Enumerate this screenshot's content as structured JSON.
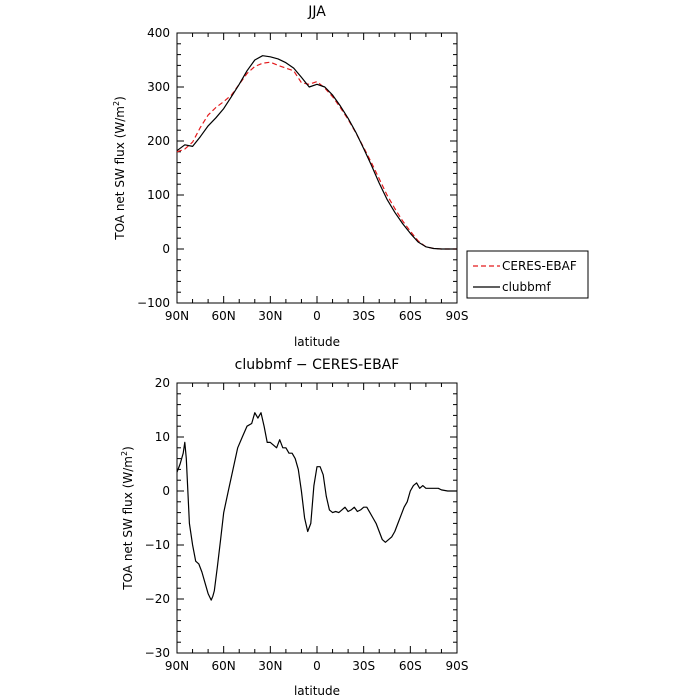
{
  "colors": {
    "ceres": "#e41a1c",
    "model": "#000000",
    "axis": "#000000"
  },
  "chart_data": [
    {
      "type": "line",
      "title": "JJA",
      "xlabel": "latitude",
      "ylabel": "TOA net SW flux (W/m",
      "ylabel_sup": "2",
      "ylabel_close": ")",
      "xlim": [
        90,
        -90
      ],
      "ylim": [
        -100,
        400
      ],
      "x_ticks": [
        90,
        60,
        30,
        0,
        -30,
        -60,
        -90
      ],
      "x_tick_labels": [
        "90N",
        "60N",
        "30N",
        "0",
        "30S",
        "60S",
        "90S"
      ],
      "y_ticks": [
        -100,
        0,
        100,
        200,
        300,
        400
      ],
      "y_tick_labels": [
        "−100",
        "0",
        "100",
        "200",
        "300",
        "400"
      ],
      "legend": {
        "placement": "right",
        "entries": [
          "CERES-EBAF",
          "clubbmf"
        ]
      },
      "series": [
        {
          "name": "CERES-EBAF",
          "style": "dashed",
          "x": [
            90,
            85,
            80,
            75,
            70,
            65,
            60,
            55,
            50,
            45,
            40,
            35,
            30,
            25,
            20,
            15,
            10,
            5,
            0,
            -5,
            -10,
            -15,
            -20,
            -25,
            -30,
            -35,
            -40,
            -45,
            -50,
            -55,
            -60,
            -65,
            -70,
            -75,
            -80,
            -85,
            -90
          ],
          "y": [
            180,
            185,
            198,
            225,
            248,
            262,
            273,
            285,
            305,
            325,
            338,
            344,
            346,
            340,
            335,
            330,
            308,
            305,
            310,
            298,
            282,
            262,
            240,
            215,
            188,
            160,
            130,
            100,
            75,
            52,
            33,
            15,
            4,
            1,
            0,
            0,
            0
          ]
        },
        {
          "name": "clubbmf",
          "style": "solid",
          "x": [
            90,
            85,
            80,
            75,
            70,
            65,
            60,
            55,
            50,
            45,
            40,
            35,
            30,
            25,
            20,
            15,
            10,
            5,
            0,
            -5,
            -10,
            -15,
            -20,
            -25,
            -30,
            -35,
            -40,
            -45,
            -50,
            -55,
            -60,
            -65,
            -70,
            -75,
            -80,
            -85,
            -90
          ],
          "y": [
            182,
            193,
            190,
            208,
            228,
            243,
            260,
            282,
            305,
            330,
            350,
            358,
            356,
            352,
            345,
            335,
            318,
            300,
            305,
            300,
            285,
            265,
            242,
            216,
            186,
            155,
            122,
            92,
            68,
            47,
            29,
            13,
            4,
            1,
            0,
            0,
            0
          ]
        }
      ]
    },
    {
      "type": "line",
      "title": "clubbmf − CERES-EBAF",
      "xlabel": "latitude",
      "ylabel": "TOA net SW flux (W/m",
      "ylabel_sup": "2",
      "ylabel_close": ")",
      "xlim": [
        90,
        -90
      ],
      "ylim": [
        -30,
        20
      ],
      "x_ticks": [
        90,
        60,
        30,
        0,
        -30,
        -60,
        -90
      ],
      "x_tick_labels": [
        "90N",
        "60N",
        "30N",
        "0",
        "30S",
        "60S",
        "90S"
      ],
      "y_ticks": [
        -30,
        -20,
        -10,
        0,
        10,
        20
      ],
      "y_tick_labels": [
        "−30",
        "−20",
        "−10",
        "0",
        "10",
        "20"
      ],
      "series": [
        {
          "name": "clubbmf − CERES-EBAF",
          "style": "solid",
          "x": [
            90,
            88,
            86,
            85,
            84,
            82,
            80,
            78,
            76,
            74,
            72,
            70,
            68,
            67,
            66,
            64,
            62,
            60,
            57,
            54,
            51,
            48,
            45,
            42,
            40,
            38,
            36,
            34,
            32,
            30,
            28,
            26,
            24,
            22,
            20,
            18,
            16,
            14,
            12,
            10,
            8,
            6,
            4,
            2,
            0,
            -2,
            -4,
            -6,
            -8,
            -10,
            -12,
            -14,
            -16,
            -18,
            -20,
            -22,
            -24,
            -26,
            -28,
            -30,
            -32,
            -34,
            -36,
            -38,
            -40,
            -42,
            -44,
            -46,
            -48,
            -50,
            -52,
            -54,
            -56,
            -58,
            -60,
            -62,
            -64,
            -66,
            -68,
            -70,
            -72,
            -75,
            -78,
            -80,
            -84,
            -87,
            -90
          ],
          "y": [
            3.5,
            5,
            7,
            9,
            6,
            -6,
            -10,
            -13,
            -13.5,
            -15,
            -17,
            -19,
            -20.2,
            -19.5,
            -18.5,
            -14,
            -9,
            -4,
            0,
            4,
            8,
            10,
            12,
            12.5,
            14.5,
            13.5,
            14.5,
            12,
            9,
            9,
            8.5,
            8,
            9.5,
            8,
            8,
            7,
            7,
            6,
            4,
            0,
            -5,
            -7.5,
            -6,
            1,
            4.5,
            4.5,
            3,
            -1,
            -3.5,
            -4,
            -3.8,
            -4,
            -3.5,
            -3,
            -3.8,
            -3.5,
            -3,
            -3.8,
            -3.5,
            -3,
            -3,
            -4,
            -5,
            -6,
            -7.5,
            -9,
            -9.5,
            -9,
            -8.5,
            -7.5,
            -6,
            -4.5,
            -3,
            -2,
            0,
            1,
            1.5,
            0.5,
            1,
            0.5,
            0.5,
            0.5,
            0.5,
            0.2,
            0,
            0,
            0
          ]
        }
      ]
    }
  ]
}
